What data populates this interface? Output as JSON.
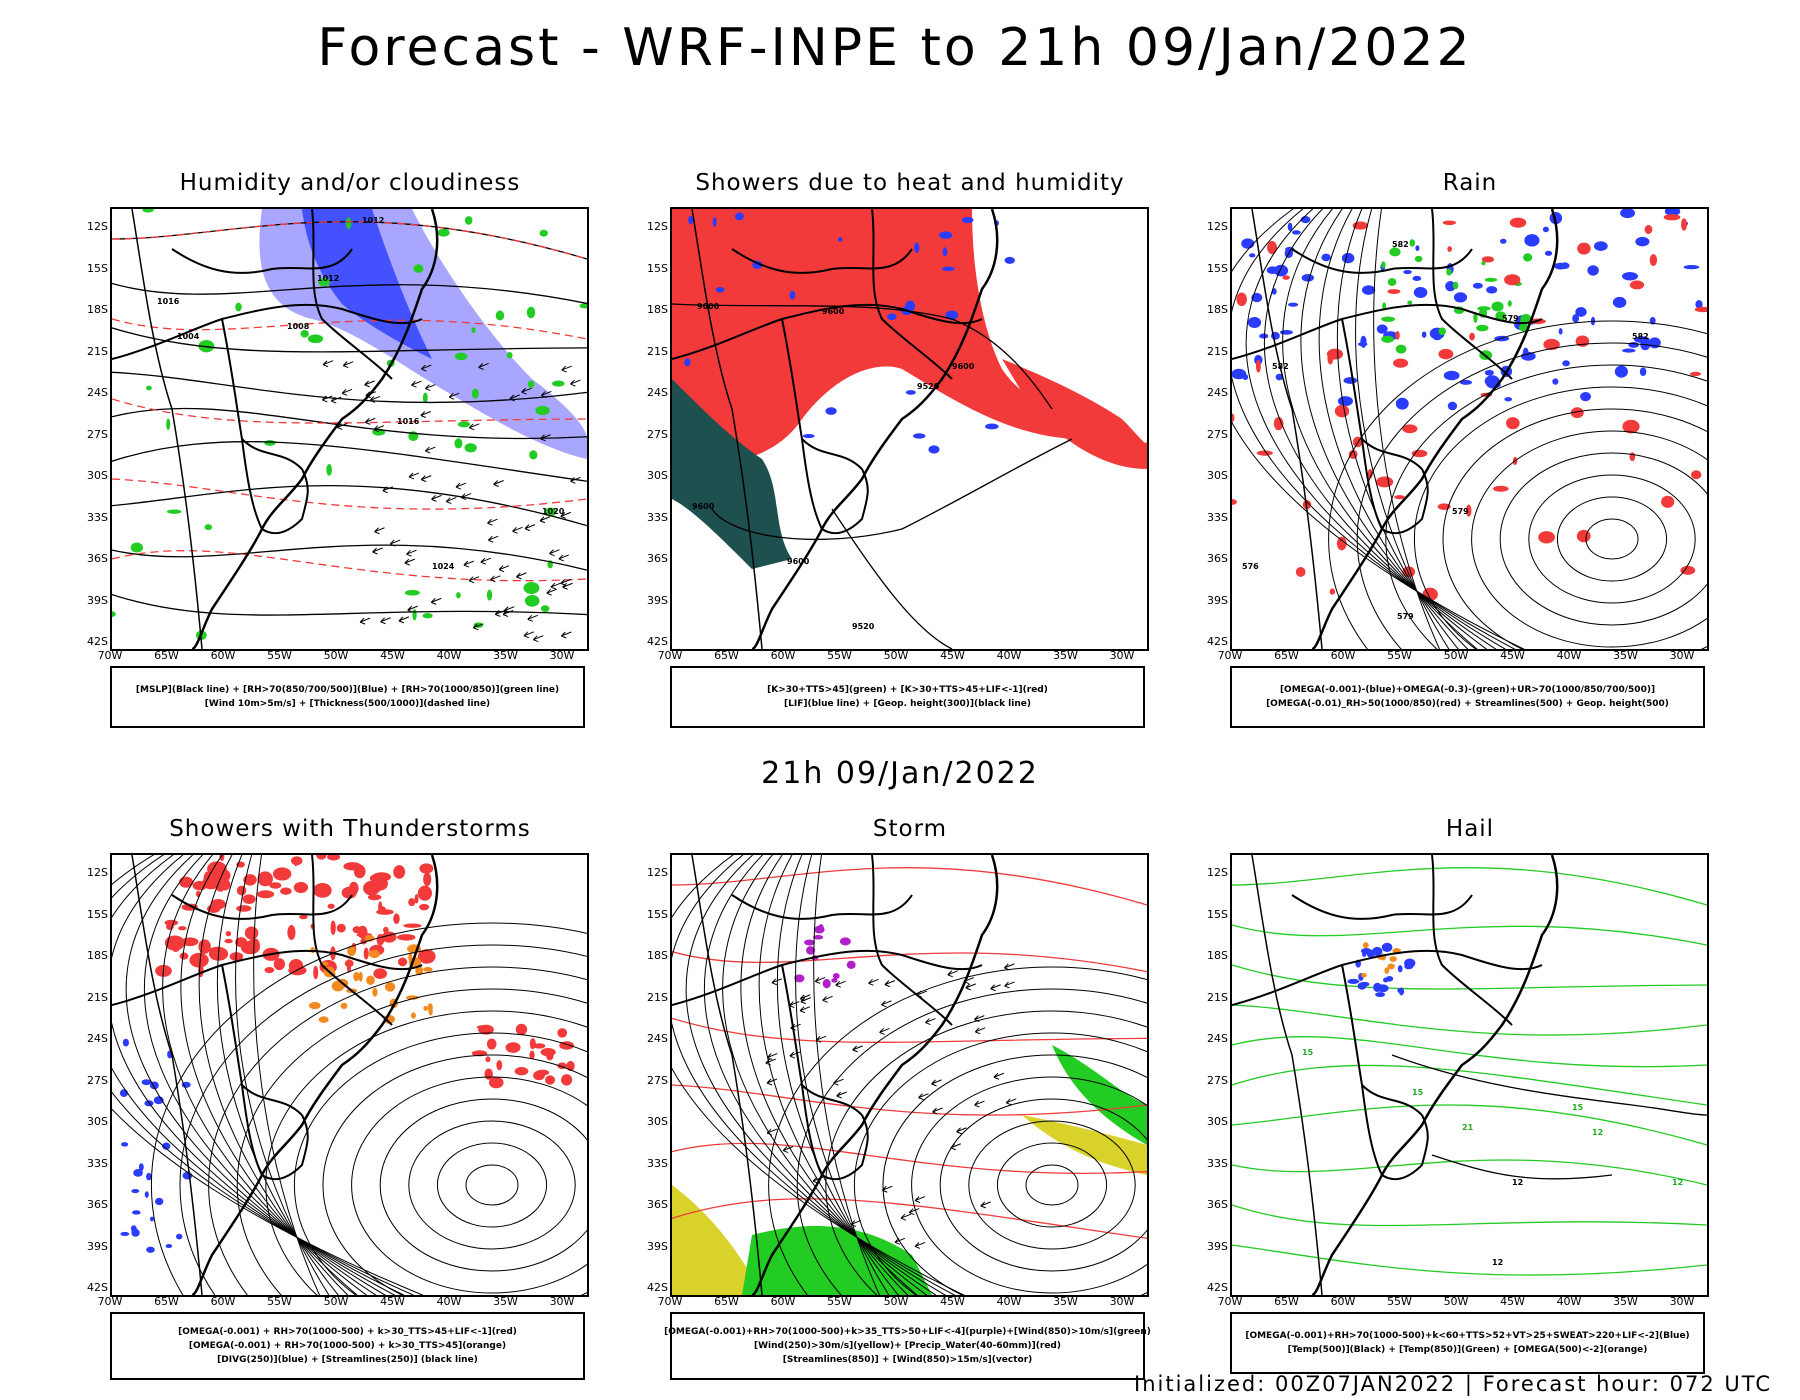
{
  "header": {
    "title": "Forecast - WRF-INPE to 21h 09/Jan/2022"
  },
  "mid_title": "21h 09/Jan/2022",
  "footer": "Initialized: 00Z07JAN2022 | Forecast hour: 072 UTC",
  "axes": {
    "y": [
      "12S",
      "15S",
      "18S",
      "21S",
      "24S",
      "27S",
      "30S",
      "33S",
      "36S",
      "39S",
      "42S"
    ],
    "x": [
      "70W",
      "65W",
      "60W",
      "55W",
      "50W",
      "45W",
      "40W",
      "35W",
      "30W"
    ]
  },
  "colors": {
    "red": "#f23a3a",
    "blue": "#2a3cff",
    "lightblue": "#a8a6ff",
    "green": "#22cc22",
    "darkteal": "#1f5050",
    "orange": "#f28a20",
    "yellow": "#d8d22a",
    "purple": "#b020c8"
  },
  "panels": [
    {
      "title": "Humidity and/or cloudiness",
      "legend": [
        "[MSLP](Black line) + [RH>70(850/700/500)](Blue) + [RH>70(1000/850)](green line)",
        "[Wind 10m>5m/s] + [Thickness(500/1000)](dashed line)"
      ]
    },
    {
      "title": "Showers due to heat and humidity",
      "legend": [
        "[K>30+TTS>45](green) + [K>30+TTS>45+LIF<-1](red)",
        "[LIF](blue line) + [Geop. height(300)](black line)"
      ]
    },
    {
      "title": "Rain",
      "legend": [
        "[OMEGA(-0.001)-(blue)+OMEGA(-0.3)-(green)+UR>70(1000/850/700/500)]",
        "[OMEGA(-0.01)_RH>50(1000/850)(red) + Streamlines(500) + Geop. height(500)"
      ]
    },
    {
      "title": "Showers with Thunderstorms",
      "legend": [
        "[OMEGA(-0.001) + RH>70(1000-500) + k>30_TTS>45+LIF<-1](red)",
        "[OMEGA(-0.001) + RH>70(1000-500) + k>30_TTS>45](orange)",
        "[DIVG(250)](blue) + [Streamlines(250)] (black line)"
      ]
    },
    {
      "title": "Storm",
      "legend": [
        "[OMEGA(-0.001)+RH>70(1000-500)+k>35_TTS>50+LIF<-4](purple)+[Wind(850)>10m/s](green)",
        "[Wind(250)>30m/s](yellow)+ [Precip_Water(40-60mm)](red)",
        "[Streamlines(850)] + [Wind(850)>15m/s](vector)"
      ]
    },
    {
      "title": "Hail",
      "legend": [
        "[OMEGA(-0.001)+RH>70(1000-500)+k<60+TTS>52+VT>25+SWEAT>220+LIF<-2](Blue)",
        "[Temp(500)](Black) + [Temp(850)](Green) + [OMEGA(500)<-2](orange)"
      ]
    }
  ],
  "contour_labels": {
    "mslp": [
      "1012",
      "1016",
      "1008",
      "1004",
      "1020",
      "1024"
    ],
    "geop300": [
      "9600",
      "9520"
    ],
    "geop500": [
      "582",
      "579",
      "576"
    ],
    "temp": [
      "12",
      "15",
      "21"
    ]
  }
}
